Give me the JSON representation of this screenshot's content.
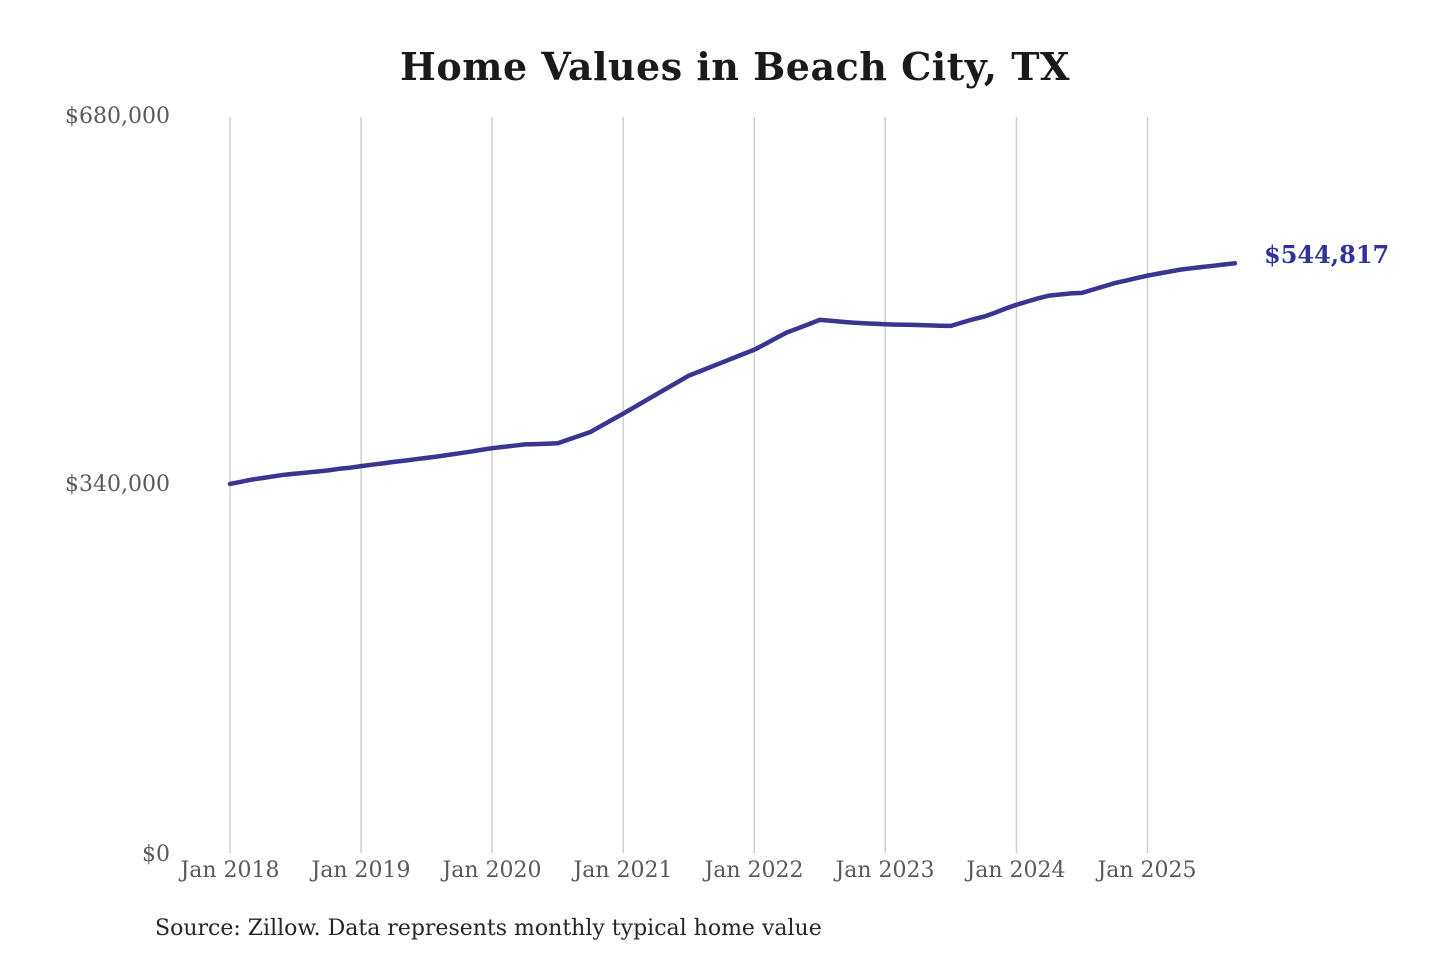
{
  "title": "Home Values in Beach City, TX",
  "end_label": "$544,817",
  "source_note": "Source: Zillow. Data represents monthly typical home value",
  "colors": {
    "line": "#3a3492",
    "end_label": "#32329b",
    "grid": "#cccccc",
    "axis_text": "#595959",
    "title_text": "#1a1a1a",
    "source_text": "#262626",
    "background": "#ffffff"
  },
  "chart_data": {
    "type": "line",
    "title": "Home Values in Beach City, TX",
    "xlabel": "",
    "ylabel": "",
    "ylim": [
      0,
      680000
    ],
    "y_tick_values": [
      0,
      340000,
      680000
    ],
    "y_tick_labels": [
      "$0",
      "$340,000",
      "$680,000"
    ],
    "x_tick_labels": [
      "Jan 2018",
      "Jan 2019",
      "Jan 2020",
      "Jan 2021",
      "Jan 2022",
      "Jan 2023",
      "Jan 2024",
      "Jan 2025"
    ],
    "grid": "vertical-only",
    "legend": "none",
    "annotation": {
      "text": "$544,817",
      "attached_to": "last-point"
    },
    "series": [
      {
        "name": "Monthly typical home value",
        "unit": "USD",
        "frequency": "monthly",
        "x_start": "2018-01",
        "x_end": "2025-09",
        "last_value": 544817,
        "dates": [
          "2018-01",
          "2018-02",
          "2018-03",
          "2018-04",
          "2018-05",
          "2018-06",
          "2018-07",
          "2018-08",
          "2018-09",
          "2018-10",
          "2018-11",
          "2018-12",
          "2019-01",
          "2019-02",
          "2019-03",
          "2019-04",
          "2019-05",
          "2019-06",
          "2019-07",
          "2019-08",
          "2019-09",
          "2019-10",
          "2019-11",
          "2019-12",
          "2020-01",
          "2020-02",
          "2020-03",
          "2020-04",
          "2020-05",
          "2020-06",
          "2020-07",
          "2020-08",
          "2020-09",
          "2020-10",
          "2020-11",
          "2020-12",
          "2021-01",
          "2021-02",
          "2021-03",
          "2021-04",
          "2021-05",
          "2021-06",
          "2021-07",
          "2021-08",
          "2021-09",
          "2021-10",
          "2021-11",
          "2021-12",
          "2022-01",
          "2022-02",
          "2022-03",
          "2022-04",
          "2022-05",
          "2022-06",
          "2022-07",
          "2022-08",
          "2022-09",
          "2022-10",
          "2022-11",
          "2022-12",
          "2023-01",
          "2023-02",
          "2023-03",
          "2023-04",
          "2023-05",
          "2023-06",
          "2023-07",
          "2023-08",
          "2023-09",
          "2023-10",
          "2023-11",
          "2023-12",
          "2024-01",
          "2024-02",
          "2024-03",
          "2024-04",
          "2024-05",
          "2024-06",
          "2024-07",
          "2024-08",
          "2024-09",
          "2024-10",
          "2024-11",
          "2024-12",
          "2025-01",
          "2025-02",
          "2025-03",
          "2025-04",
          "2025-05",
          "2025-06",
          "2025-07",
          "2025-08",
          "2025-09"
        ],
        "values": [
          341000,
          343000,
          345000,
          346500,
          348000,
          349500,
          350500,
          351500,
          352500,
          353500,
          355000,
          356000,
          357500,
          358800,
          360000,
          361300,
          362500,
          363800,
          365000,
          366300,
          367800,
          369300,
          370800,
          372400,
          374000,
          375200,
          376300,
          377500,
          377800,
          378200,
          378500,
          382000,
          385500,
          389000,
          394700,
          400300,
          406000,
          411800,
          417700,
          423500,
          429300,
          435200,
          441000,
          445000,
          449000,
          453000,
          457000,
          461000,
          465000,
          470300,
          475700,
          481000,
          484800,
          488700,
          492500,
          491700,
          490800,
          490000,
          489500,
          489000,
          488500,
          488200,
          488000,
          487800,
          487500,
          487200,
          487000,
          490000,
          493000,
          495500,
          499000,
          503000,
          506500,
          509500,
          512500,
          515000,
          516000,
          517000,
          517500,
          520500,
          523500,
          526500,
          528800,
          531200,
          533500,
          535300,
          537200,
          539000,
          540200,
          541400,
          542500,
          543700,
          544817
        ]
      }
    ]
  }
}
